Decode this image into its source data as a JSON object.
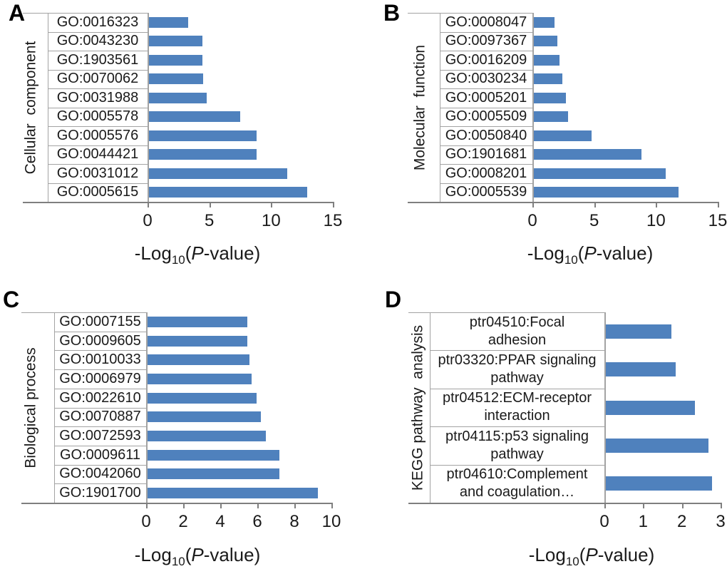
{
  "figure": {
    "panel_letters": [
      "A",
      "B",
      "C",
      "D"
    ],
    "value_axis_title_parts": {
      "prefix": "-Log",
      "subscript": "10",
      "paren_open": "(",
      "p_italic": "P",
      "suffix": "-value)"
    },
    "colors": {
      "bar": "#4f81bd",
      "cell_border": "#a3a3a3",
      "axis_line": "#7f7f7f",
      "text": "#1a1a1a"
    }
  },
  "chart_data": [
    {
      "type": "bar",
      "panel": "A",
      "orientation": "horizontal",
      "category_axis_title": "Cellular  component",
      "value_axis_title": "-Log10(P-value)",
      "categories": [
        "GO:0016323",
        "GO:0043230",
        "GO:1903561",
        "GO:0070062",
        "GO:0031988",
        "GO:0005578",
        "GO:0005576",
        "GO:0044421",
        "GO:0031012",
        "GO:0005615"
      ],
      "values": [
        3.2,
        4.3,
        4.3,
        4.4,
        4.7,
        7.4,
        8.7,
        8.7,
        11.2,
        12.8
      ],
      "xlim": [
        0,
        15
      ],
      "xticks": [
        0,
        5,
        10,
        15
      ],
      "grid": false,
      "legend": null
    },
    {
      "type": "bar",
      "panel": "B",
      "orientation": "horizontal",
      "category_axis_title": "Molecular  function",
      "value_axis_title": "-Log10(P-value)",
      "categories": [
        "GO:0008047",
        "GO:0097367",
        "GO:0016209",
        "GO:0030234",
        "GO:0005201",
        "GO:0005509",
        "GO:0050840",
        "GO:1901681",
        "GO:0008201",
        "GO:0005539"
      ],
      "values": [
        1.7,
        1.9,
        2.1,
        2.3,
        2.6,
        2.75,
        4.7,
        8.7,
        10.7,
        11.7
      ],
      "xlim": [
        0,
        15
      ],
      "xticks": [
        0,
        5,
        10,
        15
      ],
      "grid": false,
      "legend": null
    },
    {
      "type": "bar",
      "panel": "C",
      "orientation": "horizontal",
      "category_axis_title": "Biological process",
      "value_axis_title": "-Log10(P-value)",
      "categories": [
        "GO:0007155",
        "GO:0009605",
        "GO:0010033",
        "GO:0006979",
        "GO:0022610",
        "GO:0070887",
        "GO:0072593",
        "GO:0009611",
        "GO:0042060",
        "GO:1901700"
      ],
      "values": [
        5.4,
        5.4,
        5.5,
        5.6,
        5.9,
        6.1,
        6.4,
        7.1,
        7.1,
        9.2
      ],
      "xlim": [
        0,
        10
      ],
      "xticks": [
        0,
        2,
        4,
        6,
        8,
        10
      ],
      "grid": false,
      "legend": null
    },
    {
      "type": "bar",
      "panel": "D",
      "orientation": "horizontal",
      "category_axis_title": "KEGG pathway  analysis",
      "value_axis_title": "-Log10(P-value)",
      "categories": [
        "ptr04510:Focal adhesion",
        "ptr03320:PPAR signaling pathway",
        "ptr04512:ECM-receptor interaction",
        "ptr04115:p53 signaling pathway",
        "ptr04610:Complement and coagulation…"
      ],
      "category_label_lines": [
        [
          "ptr04510:Focal",
          "adhesion"
        ],
        [
          "ptr03320:PPAR signaling",
          "pathway"
        ],
        [
          "ptr04512:ECM-receptor",
          "interaction"
        ],
        [
          "ptr04115:p53 signaling",
          "pathway"
        ],
        [
          "ptr04610:Complement",
          "and coagulation…"
        ]
      ],
      "values": [
        1.7,
        1.8,
        2.3,
        2.65,
        2.75
      ],
      "xlim": [
        0,
        3
      ],
      "xticks": [
        0,
        1,
        2,
        3
      ],
      "grid": false,
      "legend": null
    }
  ]
}
